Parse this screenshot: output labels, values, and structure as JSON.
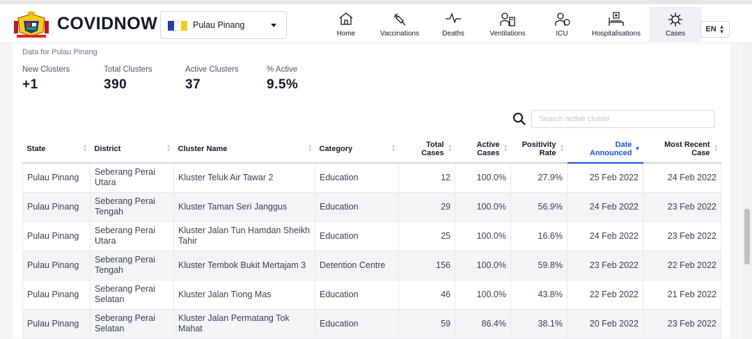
{
  "brand": {
    "name": "COVIDNOW",
    "logo": "malaysia-coat-of-arms"
  },
  "state_selector": {
    "value": "Pulau Pinang",
    "flag_colors": [
      "#1e40af",
      "#ffffff",
      "#facc15"
    ]
  },
  "nav": [
    {
      "label": "Home",
      "icon": "home-icon"
    },
    {
      "label": "Vaccinations",
      "icon": "syringe-icon"
    },
    {
      "label": "Deaths",
      "icon": "pulse-icon"
    },
    {
      "label": "Ventilations",
      "icon": "ventilator-icon"
    },
    {
      "label": "ICU",
      "icon": "icu-icon"
    },
    {
      "label": "Hospitalisations",
      "icon": "hospital-bed-icon"
    },
    {
      "label": "Cases",
      "icon": "virus-icon",
      "active": true
    }
  ],
  "language": {
    "value": "EN"
  },
  "summary": {
    "data_for": "Data for Pulau Pinang",
    "new_clusters": {
      "label": "New Clusters",
      "value": "+1"
    },
    "total_clusters": {
      "label": "Total Clusters",
      "value": "390"
    },
    "active_clusters": {
      "label": "Active Clusters",
      "value": "37"
    },
    "pct_active": {
      "label": "% Active",
      "value": "9.5%"
    }
  },
  "search": {
    "placeholder": "Search active cluster"
  },
  "table": {
    "headers": {
      "state": "State",
      "district": "District",
      "cluster": "Cluster Name",
      "category": "Category",
      "total_1": "Total",
      "total_2": "Cases",
      "active_1": "Active",
      "active_2": "Cases",
      "positivity_1": "Positivity",
      "positivity_2": "Rate",
      "announced_1": "Date",
      "announced_2": "Announced",
      "recent_1": "Most Recent",
      "recent_2": "Case"
    },
    "rows": [
      {
        "state": "Pulau Pinang",
        "district": "Seberang Perai Utara",
        "cluster": "Kluster Teluk Air Tawar 2",
        "category": "Education",
        "total": "12",
        "active": "100.0%",
        "positivity": "27.9%",
        "announced": "25 Feb 2022",
        "recent": "24 Feb 2022"
      },
      {
        "state": "Pulau Pinang",
        "district": "Seberang Perai Tengah",
        "cluster": "Kluster Taman Seri Janggus",
        "category": "Education",
        "total": "29",
        "active": "100.0%",
        "positivity": "56.9%",
        "announced": "24 Feb 2022",
        "recent": "23 Feb 2022"
      },
      {
        "state": "Pulau Pinang",
        "district": "Seberang Perai Utara",
        "cluster": "Kluster Jalan Tun Hamdan Sheikh Tahir",
        "category": "Education",
        "total": "25",
        "active": "100.0%",
        "positivity": "16.6%",
        "announced": "24 Feb 2022",
        "recent": "23 Feb 2022"
      },
      {
        "state": "Pulau Pinang",
        "district": "Seberang Perai Tengah",
        "cluster": "Kluster Tembok Bukit Mertajam 3",
        "category": "Detention Centre",
        "total": "156",
        "active": "100.0%",
        "positivity": "59.8%",
        "announced": "23 Feb 2022",
        "recent": "22 Feb 2022"
      },
      {
        "state": "Pulau Pinang",
        "district": "Seberang Perai Selatan",
        "cluster": "Kluster Jalan Tiong Mas",
        "category": "Education",
        "total": "46",
        "active": "100.0%",
        "positivity": "43.8%",
        "announced": "22 Feb 2022",
        "recent": "21 Feb 2022"
      },
      {
        "state": "Pulau Pinang",
        "district": "Seberang Perai Selatan",
        "cluster": "Kluster Jalan Permatang Tok Mahat",
        "category": "Education",
        "total": "59",
        "active": "86.4%",
        "positivity": "38.1%",
        "announced": "20 Feb 2022",
        "recent": "23 Feb 2022"
      }
    ]
  }
}
